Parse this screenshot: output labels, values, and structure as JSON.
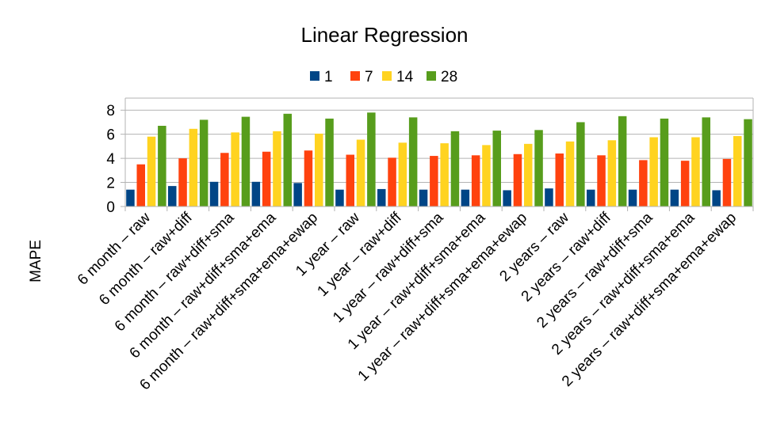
{
  "chart_data": {
    "type": "bar",
    "title": "Linear Regression",
    "ylabel": "MAPE",
    "xlabel": "",
    "ylim": [
      0,
      9
    ],
    "yticks": [
      0,
      2,
      4,
      6,
      8
    ],
    "grid": "horizontal",
    "legend_position": "top",
    "categories": [
      "6 month – raw",
      "6 month – raw+diff",
      "6 month – raw+diff+sma",
      "6 month – raw+diff+sma+ema",
      "6 month – raw+diff+sma+ema+ewap",
      "1 year – raw",
      "1 year – raw+diff",
      "1 year – raw+diff+sma",
      "1 year – raw+diff+sma+ema",
      "1 year – raw+diff+sma+ema+ewap",
      "2 years – raw",
      "2 years – raw+diff",
      "2 years – raw+diff+sma",
      "2 years – raw+diff+sma+ema",
      "2 years – raw+diff+sma+ema+ewap"
    ],
    "series": [
      {
        "name": "1",
        "color": "#004586",
        "values": [
          1.4,
          1.7,
          2.05,
          2.05,
          1.95,
          1.4,
          1.45,
          1.4,
          1.4,
          1.35,
          1.5,
          1.4,
          1.4,
          1.4,
          1.35
        ]
      },
      {
        "name": "7",
        "color": "#ff420e",
        "values": [
          3.5,
          4.0,
          4.45,
          4.55,
          4.65,
          4.3,
          4.05,
          4.2,
          4.25,
          4.35,
          4.4,
          4.25,
          3.85,
          3.8,
          3.95
        ]
      },
      {
        "name": "14",
        "color": "#ffd320",
        "values": [
          5.8,
          6.45,
          6.15,
          6.25,
          6.05,
          5.55,
          5.3,
          5.25,
          5.1,
          5.2,
          5.4,
          5.5,
          5.75,
          5.75,
          5.85
        ]
      },
      {
        "name": "28",
        "color": "#579d1c",
        "values": [
          6.7,
          7.2,
          7.45,
          7.7,
          7.3,
          7.8,
          7.4,
          6.25,
          6.3,
          6.35,
          7.0,
          7.5,
          7.3,
          7.4,
          7.25
        ]
      }
    ]
  }
}
